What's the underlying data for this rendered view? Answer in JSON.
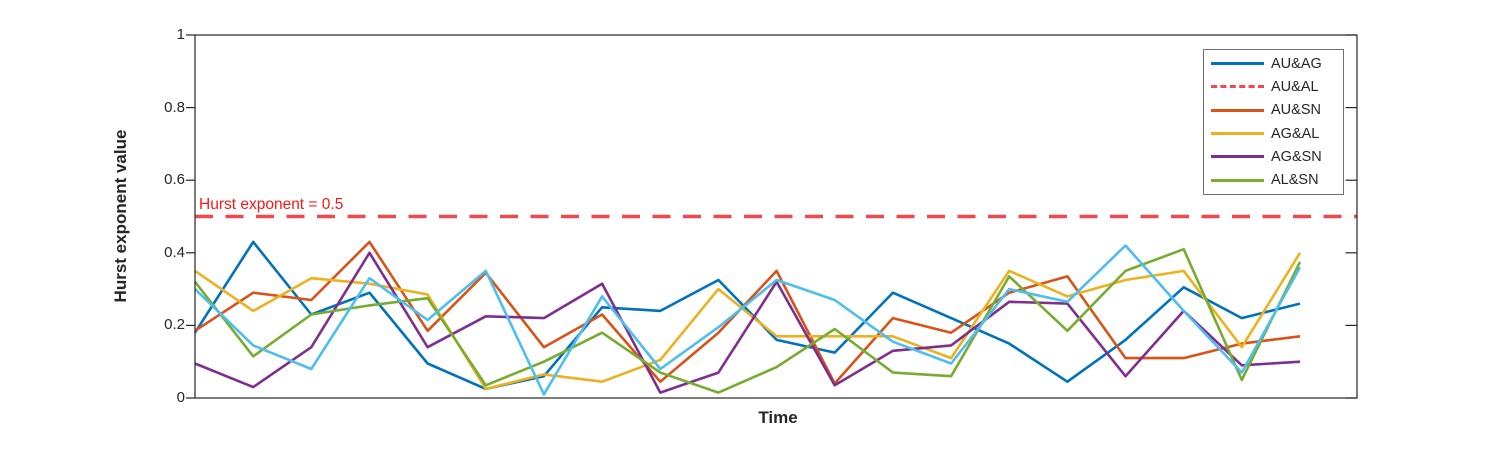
{
  "figure": {
    "ylabel": "Hurst exponent value",
    "xlabel": "Time",
    "annotation": "Hurst exponent = 0.5"
  },
  "chart_data": {
    "type": "line",
    "title": "",
    "xlabel": "Time",
    "ylabel": "Hurst exponent value",
    "ylim": [
      0,
      1
    ],
    "yticks": [
      "0",
      "0.2",
      "0.4",
      "0.6",
      "0.8",
      "1"
    ],
    "ytick_values": [
      0,
      0.2,
      0.4,
      0.6,
      0.8,
      1
    ],
    "x_points": 20,
    "x_tick_labels_visible": false,
    "grid": false,
    "legend_position": "top-right",
    "reference_line": {
      "label": "Hurst exponent = 0.5",
      "value": 0.5,
      "color": "#f0484e",
      "style": "dashed",
      "annotation_color": "#f51818"
    },
    "series": [
      {
        "name": "AU&AG",
        "color": "#0072BD",
        "dash": false,
        "values": [
          0.18,
          0.43,
          0.23,
          0.29,
          0.095,
          0.025,
          0.06,
          0.25,
          0.24,
          0.325,
          0.16,
          0.125,
          0.29,
          0.22,
          0.15,
          0.045,
          0.16,
          0.305,
          0.22,
          0.26
        ]
      },
      {
        "name": "AU&SN",
        "color": "#D95319",
        "dash": false,
        "values": [
          0.185,
          0.29,
          0.27,
          0.43,
          0.185,
          0.345,
          0.14,
          0.23,
          0.045,
          0.18,
          0.35,
          0.04,
          0.22,
          0.18,
          0.29,
          0.335,
          0.11,
          0.11,
          0.15,
          0.17
        ]
      },
      {
        "name": "AG&AL",
        "color": "#EDB120",
        "dash": false,
        "values": [
          0.35,
          0.24,
          0.33,
          0.315,
          0.285,
          0.025,
          0.065,
          0.045,
          0.105,
          0.3,
          0.17,
          0.17,
          0.17,
          0.11,
          0.35,
          0.28,
          0.325,
          0.35,
          0.14,
          0.4
        ]
      },
      {
        "name": "AG&SN",
        "color": "#7E2F8E",
        "dash": false,
        "values": [
          0.095,
          0.03,
          0.14,
          0.4,
          0.14,
          0.225,
          0.22,
          0.315,
          0.015,
          0.07,
          0.32,
          0.035,
          0.13,
          0.145,
          0.265,
          0.26,
          0.06,
          0.24,
          0.09,
          0.1
        ]
      },
      {
        "name": "AL&SN",
        "color": "#77AC30",
        "dash": false,
        "values": [
          0.32,
          0.115,
          0.23,
          0.255,
          0.275,
          0.035,
          0.1,
          0.18,
          0.07,
          0.015,
          0.085,
          0.19,
          0.07,
          0.06,
          0.335,
          0.185,
          0.35,
          0.41,
          0.05,
          0.375
        ]
      },
      {
        "name": "unlabeled-cyan",
        "color": "#4DBEEE",
        "dash": false,
        "values": [
          0.3,
          0.145,
          0.08,
          0.33,
          0.215,
          0.35,
          0.01,
          0.28,
          0.08,
          0.195,
          0.325,
          0.27,
          0.155,
          0.095,
          0.3,
          0.265,
          0.42,
          0.24,
          0.07,
          0.36
        ]
      }
    ],
    "legend": [
      {
        "label": "AU&AG",
        "color": "#0072BD",
        "dash": false
      },
      {
        "label": "AU&AL",
        "color": "#f0484e",
        "dash": true
      },
      {
        "label": "AU&SN",
        "color": "#D95319",
        "dash": false
      },
      {
        "label": "AG&AL",
        "color": "#EDB120",
        "dash": false
      },
      {
        "label": "AG&SN",
        "color": "#7E2F8E",
        "dash": false
      },
      {
        "label": "AL&SN",
        "color": "#77AC30",
        "dash": false
      }
    ]
  }
}
